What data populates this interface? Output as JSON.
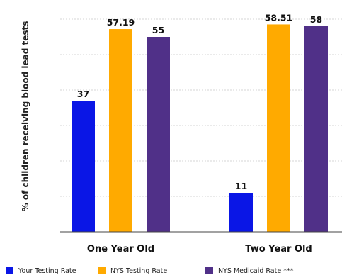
{
  "chart_data": {
    "type": "bar",
    "categories": [
      "One Year Old",
      "Two Year Old"
    ],
    "series": [
      {
        "name": "Your Testing Rate",
        "values": [
          37,
          11
        ],
        "color": "#0a16e6"
      },
      {
        "name": "NYS Testing Rate",
        "values": [
          57.19,
          58.51
        ],
        "color": "#ffaa00"
      },
      {
        "name": "NYS Medicaid Rate ***",
        "values": [
          55,
          58
        ],
        "color": "#503088"
      }
    ],
    "data_labels": [
      [
        "37",
        "11"
      ],
      [
        "57.19",
        "58.51"
      ],
      [
        "55",
        "58"
      ]
    ],
    "title": "",
    "xlabel": "",
    "ylabel": "% of children receiving blood lead tests",
    "ylim": [
      0,
      62
    ],
    "grid": true,
    "legend_position": "bottom"
  }
}
